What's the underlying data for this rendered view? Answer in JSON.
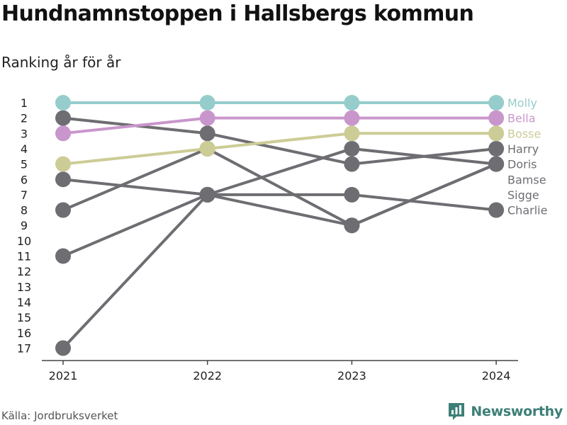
{
  "title": "Hundnamnstoppen i Hallsbergs kommun",
  "subtitle": "Ranking år för år",
  "source": "Källa: Jordbruksverket",
  "brand": "Newsworthy",
  "colors": {
    "molly": "#96cccc",
    "bella": "#c996cc",
    "bosse": "#cccc96",
    "other": "#6e6d72",
    "brand": "#3d7f78"
  },
  "chart_data": {
    "type": "line",
    "title": "Hundnamnstoppen i Hallsbergs kommun",
    "subtitle": "Ranking år för år",
    "x": [
      "2021",
      "2022",
      "2023",
      "2024"
    ],
    "y_ticks": [
      "1",
      "2",
      "3",
      "4",
      "5",
      "6",
      "7",
      "8",
      "9",
      "10",
      "11",
      "12",
      "13",
      "14",
      "15",
      "16",
      "17"
    ],
    "ylim": [
      1,
      17
    ],
    "y_reversed": true,
    "grid": false,
    "series": [
      {
        "name": "Charlie",
        "values": [
          17,
          7,
          7,
          8
        ],
        "color": "#6e6d72"
      },
      {
        "name": "Sigge",
        "values": [
          11,
          7,
          9,
          5
        ],
        "color": "#6e6d72"
      },
      {
        "name": "Bamse",
        "values": [
          8,
          4,
          9,
          5
        ],
        "color": "#6e6d72"
      },
      {
        "name": "Doris",
        "values": [
          6,
          7,
          4,
          5
        ],
        "color": "#6e6d72"
      },
      {
        "name": "Harry",
        "values": [
          2,
          3,
          5,
          4
        ],
        "color": "#6e6d72"
      },
      {
        "name": "Bosse",
        "values": [
          5,
          4,
          3,
          3
        ],
        "color": "#cccc96"
      },
      {
        "name": "Bella",
        "values": [
          3,
          2,
          2,
          2
        ],
        "color": "#c996cc"
      },
      {
        "name": "Molly",
        "values": [
          1,
          1,
          1,
          1
        ],
        "color": "#96cccc"
      }
    ],
    "end_labels": [
      {
        "text": "Molly",
        "rank": 1,
        "color": "#96cccc"
      },
      {
        "text": "Bella",
        "rank": 2,
        "color": "#c996cc"
      },
      {
        "text": "Bosse",
        "rank": 3,
        "color": "#cccc96"
      },
      {
        "text": "Harry",
        "rank": 4,
        "color": "#6e6d72"
      },
      {
        "text": "Doris",
        "rank": 5,
        "color": "#6e6d72"
      },
      {
        "text": "Bamse",
        "rank": 6,
        "color": "#6e6d72"
      },
      {
        "text": "Sigge",
        "rank": 7,
        "color": "#6e6d72"
      },
      {
        "text": "Charlie",
        "rank": 8,
        "color": "#6e6d72"
      }
    ]
  }
}
